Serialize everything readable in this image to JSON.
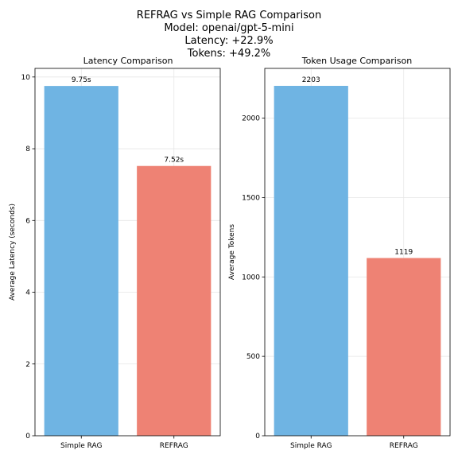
{
  "figure": {
    "title_lines": [
      "REFRAG vs Simple RAG Comparison",
      "Model: openai/gpt-5-mini",
      "Latency: +22.9%",
      "Tokens: +49.2%"
    ]
  },
  "chart_data": [
    {
      "type": "bar",
      "title": "Latency Comparison",
      "xlabel": "",
      "ylabel": "Average Latency (seconds)",
      "categories": [
        "Simple RAG",
        "REFRAG"
      ],
      "values": [
        9.75,
        7.52
      ],
      "data_labels": [
        "9.75s",
        "7.52s"
      ],
      "colors": [
        "#6fb4e3",
        "#ee8274"
      ],
      "ylim": [
        0,
        10.24
      ],
      "yticks": [
        0,
        2,
        4,
        6,
        8,
        10
      ],
      "grid": true
    },
    {
      "type": "bar",
      "title": "Token Usage Comparison",
      "xlabel": "",
      "ylabel": "Average Tokens",
      "categories": [
        "Simple RAG",
        "REFRAG"
      ],
      "values": [
        2203,
        1119
      ],
      "data_labels": [
        "2203",
        "1119"
      ],
      "colors": [
        "#6fb4e3",
        "#ee8274"
      ],
      "ylim": [
        0,
        2313
      ],
      "yticks": [
        0,
        500,
        1000,
        1500,
        2000
      ],
      "grid": true
    }
  ]
}
